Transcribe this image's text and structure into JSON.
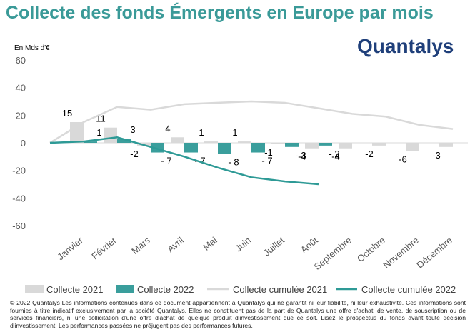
{
  "title": "Collecte des fonds Émergents en Europe par mois",
  "logo": "Quantalys",
  "footnote": "© 2022 Quantalys Les informations contenues dans ce document appartiennent à Quantalys qui ne garantit ni leur fiabilité, ni leur exhaustivité. Ces informations sont fournies à titre indicatif exclusivement par la société Quantalys. Elles ne constituent pas de la part de Quantalys une offre d'achat, de vente, de souscription ou de services financiers, ni une sollicitation d'une offre d'achat de quelque produit d'investissement que ce soit. Lisez le prospectus du fonds avant toute décision d'investissement. Les performances passées ne préjugent pas des performances futures.",
  "chart_data": {
    "type": "bar_line",
    "y_label": "En Mds d'€",
    "categories": [
      null,
      "Janvier",
      "Février",
      "Mars",
      "Avril",
      "Mai",
      "Juin",
      "Juillet",
      "Août",
      "Septembre",
      "Octobre",
      "Novembre",
      "Décembre"
    ],
    "series": [
      {
        "name": "Collecte 2021",
        "type": "bar",
        "color": "#d9d9d9",
        "values": [
          null,
          15,
          11,
          -2,
          4,
          1,
          1,
          -1,
          -4,
          -4,
          -2,
          -6,
          -3
        ]
      },
      {
        "name": "Collecte 2022",
        "type": "bar",
        "color": "#3a9e9c",
        "values": [
          null,
          1,
          3,
          -7,
          -7,
          -8,
          -7,
          -3,
          -2,
          null,
          null,
          null,
          null
        ],
        "value_labels": [
          null,
          "1",
          "3",
          "- 7",
          "- 7",
          "- 8",
          "- 7",
          "- 3",
          "- 2",
          null,
          null,
          null,
          null
        ]
      },
      {
        "name": "Collecte cumulée 2021",
        "type": "line",
        "color": "#d9d9d9",
        "values": [
          0,
          15,
          26,
          24,
          28,
          29,
          30,
          29,
          25,
          21,
          19,
          13,
          10
        ]
      },
      {
        "name": "Collecte cumulée 2022",
        "type": "line",
        "color": "#2e9a96",
        "values": [
          0,
          1,
          4,
          -3,
          -10,
          -18,
          -25,
          -28,
          -30,
          null,
          null,
          null,
          null
        ]
      }
    ],
    "ylim": [
      -60,
      60
    ],
    "yticks": [
      -60,
      -40,
      -20,
      0,
      20,
      40,
      60
    ],
    "grid": false
  }
}
